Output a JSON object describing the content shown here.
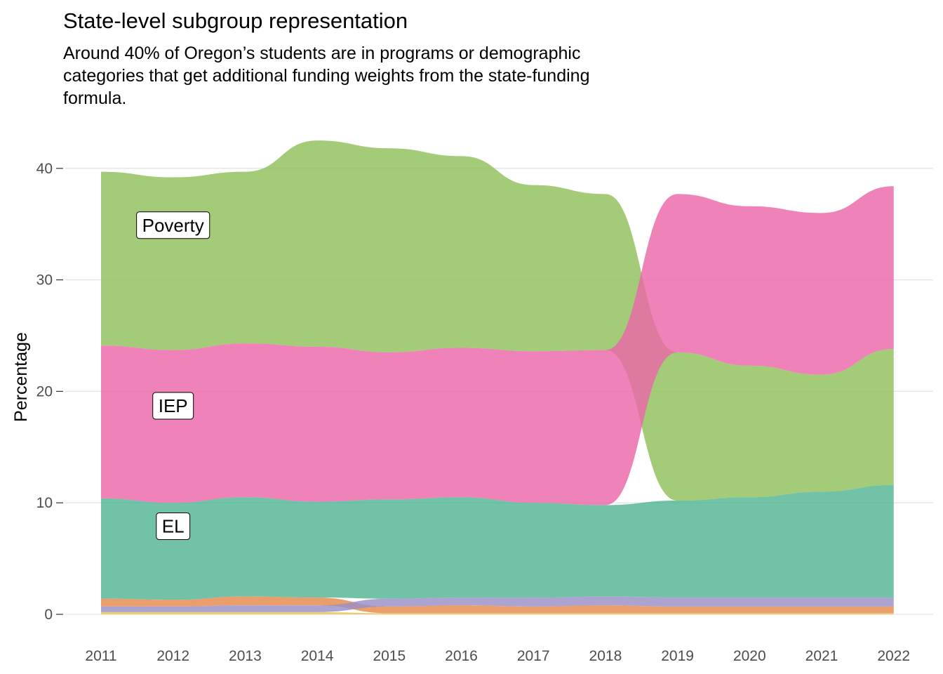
{
  "chart_data": {
    "type": "area",
    "title": "State-level subgroup representation",
    "subtitle": "Around 40% of Oregon’s students are in programs or demographic categories that get additional funding weights from the state-funding formula.",
    "xlabel": "",
    "ylabel": "Percentage",
    "x": [
      "2011",
      "2012",
      "2013",
      "2014",
      "2015",
      "2016",
      "2017",
      "2018",
      "2019",
      "2020",
      "2021",
      "2022"
    ],
    "ylim": [
      0,
      42.5
    ],
    "yticks": [
      0,
      10,
      20,
      30,
      40
    ],
    "grid": "horizontal",
    "legend": "none",
    "stacking": "ranked bump (largest subgroup on top each year)",
    "series": [
      {
        "name": "Poverty",
        "color": "#8fbf5a",
        "values": [
          15.6,
          15.5,
          15.4,
          18.5,
          18.3,
          17.2,
          14.9,
          14.0,
          13.3,
          11.8,
          10.5,
          12.2
        ]
      },
      {
        "name": "IEP",
        "color": "#ec67a8",
        "values": [
          13.7,
          13.7,
          13.8,
          13.9,
          13.2,
          13.4,
          13.6,
          13.9,
          14.2,
          14.3,
          14.5,
          14.6
        ]
      },
      {
        "name": "EL",
        "color": "#52b593",
        "values": [
          9.0,
          8.7,
          8.9,
          8.6,
          8.9,
          9.0,
          8.5,
          8.2,
          8.7,
          9.0,
          9.5,
          10.1
        ]
      },
      {
        "name": "",
        "color": "#e5894a",
        "values": [
          0.7,
          0.6,
          0.8,
          0.7,
          0.6,
          0.7,
          0.6,
          0.7,
          0.6,
          0.6,
          0.6,
          0.6
        ]
      },
      {
        "name": "",
        "color": "#9a8fc6",
        "values": [
          0.5,
          0.5,
          0.6,
          0.6,
          0.7,
          0.7,
          0.8,
          0.8,
          0.8,
          0.8,
          0.8,
          0.8
        ]
      },
      {
        "name": "",
        "color": "#e9c44e",
        "values": [
          0.2,
          0.2,
          0.2,
          0.2,
          0.1,
          0.1,
          0.1,
          0.1,
          0.1,
          0.1,
          0.1,
          0.1
        ]
      }
    ],
    "annotations": [
      {
        "text": "Poverty",
        "x": "2012",
        "y": 34.9
      },
      {
        "text": "IEP",
        "x": "2012",
        "y": 18.7
      },
      {
        "text": "EL",
        "x": "2012",
        "y": 7.9
      }
    ]
  }
}
